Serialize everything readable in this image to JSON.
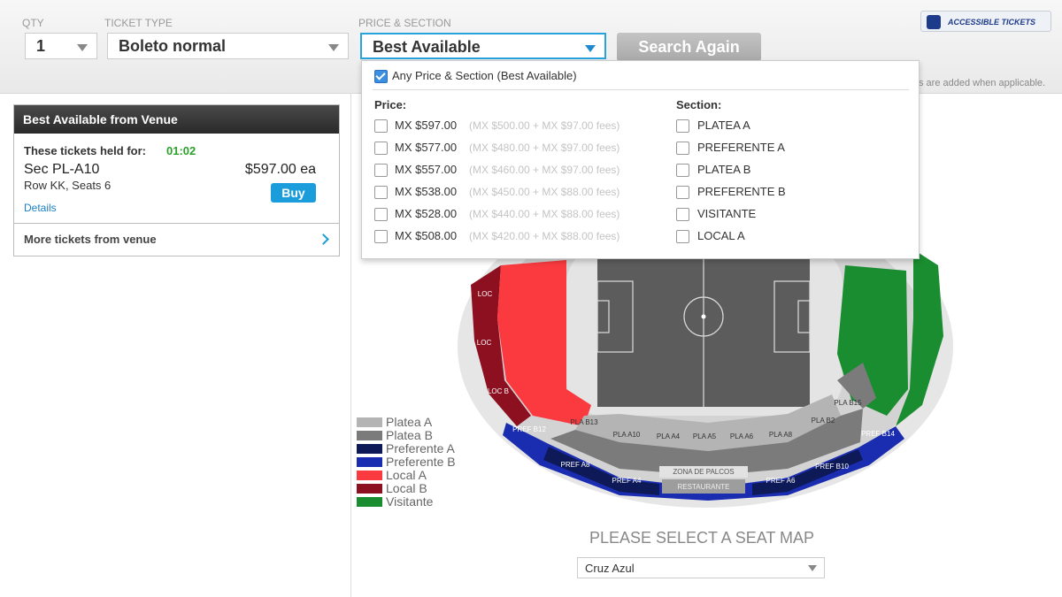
{
  "filters": {
    "qty_label": "QTY",
    "qty": "1",
    "ticket_type_label": "TICKET TYPE",
    "ticket_type": "Boleto normal",
    "price_section_label": "PRICE & SECTION",
    "price_section": "Best Available",
    "search_button": "Search Again",
    "accessible": "ACCESSIBLE TICKETS",
    "fees_note": "s are added when applicable."
  },
  "dropdown": {
    "any_option": "Any Price & Section (Best Available)",
    "price_heading": "Price:",
    "section_heading": "Section:",
    "prices": [
      {
        "price": "MX $597.00",
        "breakdown": "(MX $500.00 + MX $97.00 fees)"
      },
      {
        "price": "MX $577.00",
        "breakdown": "(MX $480.00 + MX $97.00 fees)"
      },
      {
        "price": "MX $557.00",
        "breakdown": "(MX $460.00 + MX $97.00 fees)"
      },
      {
        "price": "MX $538.00",
        "breakdown": "(MX $450.00 + MX $88.00 fees)"
      },
      {
        "price": "MX $528.00",
        "breakdown": "(MX $440.00 + MX $88.00 fees)"
      },
      {
        "price": "MX $508.00",
        "breakdown": "(MX $420.00 + MX $88.00 fees)"
      }
    ],
    "sections": [
      "PLATEA A",
      "PREFERENTE A",
      "PLATEA B",
      "PREFERENTE B",
      "VISITANTE",
      "LOCAL A"
    ]
  },
  "best_available": {
    "title": "Best Available from Venue",
    "held_label": "These tickets held for:",
    "timer": "01:02",
    "section": "Sec PL-A10",
    "price": "$597.00 ea",
    "row_seats": "Row KK, Seats 6",
    "buy": "Buy",
    "details": "Details",
    "more": "More tickets from venue"
  },
  "map": {
    "legend": [
      {
        "label": "Platea A",
        "color": "#b4b4b4"
      },
      {
        "label": "Platea B",
        "color": "#7b7b7b"
      },
      {
        "label": "Preferente A",
        "color": "#0e1957"
      },
      {
        "label": "Preferente B",
        "color": "#1a2db0"
      },
      {
        "label": "Local A",
        "color": "#fa3a3e"
      },
      {
        "label": "Local B",
        "color": "#8c1020"
      },
      {
        "label": "Visitante",
        "color": "#1a8d30"
      }
    ],
    "section_labels": [
      "PLA B13",
      "PLA A10",
      "PLA A4",
      "PLA A5",
      "PLA A6",
      "PLA A8",
      "PLA B2",
      "PLA B15",
      "PREF B12",
      "PREF A8",
      "PREF A4",
      "PREF A6",
      "PREF B10",
      "PREF B14",
      "LOC",
      "LOC",
      "LOC B"
    ],
    "palcos": "ZONA DE PALCOS",
    "restaurante": "RESTAURANTE",
    "prompt": "PLEASE SELECT A SEAT MAP",
    "selector": "Cruz Azul"
  }
}
